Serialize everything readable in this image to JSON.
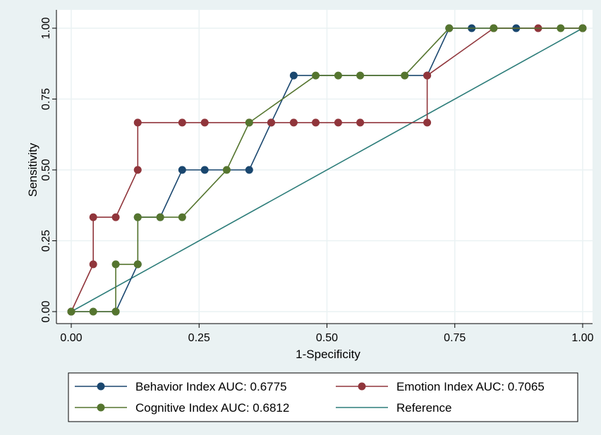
{
  "colors": {
    "figure_bg": "#eaf2f3",
    "plot_bg": "#ffffff",
    "grid": "#eaf2f3",
    "behavior": "#1a476f",
    "emotion": "#90353b",
    "cognitive": "#55752f",
    "reference": "#2d7d7a"
  },
  "chart_data": {
    "type": "line",
    "title": "",
    "xlabel": "1-Specificity",
    "ylabel": "Sensitivity",
    "xlim": [
      0,
      1
    ],
    "ylim": [
      0,
      1
    ],
    "x_ticks": [
      "0.00",
      "0.25",
      "0.50",
      "0.75",
      "1.00"
    ],
    "y_ticks": [
      "0.00",
      "0.25",
      "0.50",
      "0.75",
      "1.00"
    ],
    "grid": true,
    "legend_position": "bottom",
    "series": [
      {
        "name": "Behavior Index AUC: 0.6775",
        "color": "#1a476f",
        "marker": true,
        "points": [
          [
            0,
            0
          ],
          [
            0.087,
            0
          ],
          [
            0.13,
            0.167
          ],
          [
            0.13,
            0.333
          ],
          [
            0.174,
            0.333
          ],
          [
            0.217,
            0.5
          ],
          [
            0.261,
            0.5
          ],
          [
            0.348,
            0.5
          ],
          [
            0.391,
            0.667
          ],
          [
            0.435,
            0.833
          ],
          [
            0.696,
            0.833
          ],
          [
            0.739,
            1
          ],
          [
            0.783,
            1
          ],
          [
            0.87,
            1
          ],
          [
            1,
            1
          ]
        ]
      },
      {
        "name": "Emotion Index AUC: 0.7065",
        "color": "#90353b",
        "marker": true,
        "points": [
          [
            0,
            0
          ],
          [
            0.043,
            0.167
          ],
          [
            0.043,
            0.333
          ],
          [
            0.087,
            0.333
          ],
          [
            0.13,
            0.5
          ],
          [
            0.13,
            0.667
          ],
          [
            0.217,
            0.667
          ],
          [
            0.261,
            0.667
          ],
          [
            0.348,
            0.667
          ],
          [
            0.391,
            0.667
          ],
          [
            0.435,
            0.667
          ],
          [
            0.478,
            0.667
          ],
          [
            0.522,
            0.667
          ],
          [
            0.565,
            0.667
          ],
          [
            0.696,
            0.667
          ],
          [
            0.696,
            0.833
          ],
          [
            0.826,
            1
          ],
          [
            0.913,
            1
          ],
          [
            1,
            1
          ]
        ]
      },
      {
        "name": "Cognitive Index AUC: 0.6812",
        "color": "#55752f",
        "marker": true,
        "points": [
          [
            0,
            0
          ],
          [
            0.043,
            0
          ],
          [
            0.087,
            0
          ],
          [
            0.087,
            0.167
          ],
          [
            0.13,
            0.167
          ],
          [
            0.13,
            0.333
          ],
          [
            0.174,
            0.333
          ],
          [
            0.217,
            0.333
          ],
          [
            0.304,
            0.5
          ],
          [
            0.348,
            0.667
          ],
          [
            0.478,
            0.833
          ],
          [
            0.522,
            0.833
          ],
          [
            0.565,
            0.833
          ],
          [
            0.652,
            0.833
          ],
          [
            0.739,
            1
          ],
          [
            0.826,
            1
          ],
          [
            0.957,
            1
          ],
          [
            1,
            1
          ]
        ]
      },
      {
        "name": "Reference",
        "color": "#2d7d7a",
        "marker": false,
        "points": [
          [
            0,
            0
          ],
          [
            1,
            1
          ]
        ]
      }
    ]
  }
}
